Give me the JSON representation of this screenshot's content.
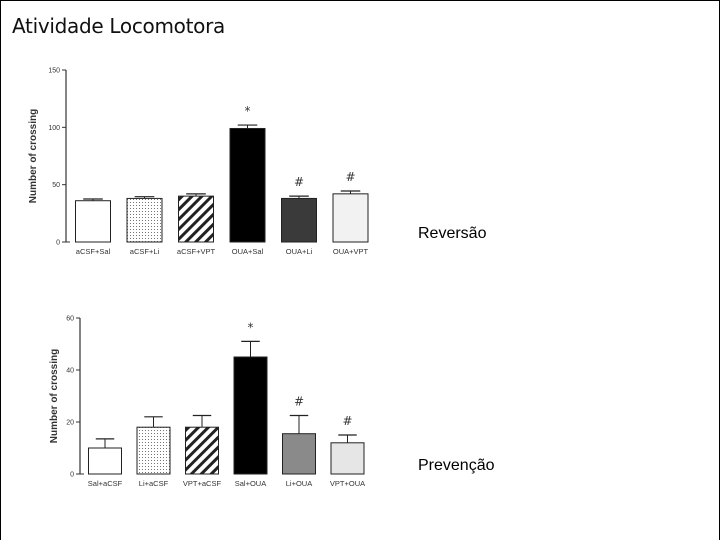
{
  "page": {
    "title": "Atividade Locomotora"
  },
  "chart_data": [
    {
      "type": "bar",
      "panel_label": "Reversão",
      "ylabel": "Number of crossing",
      "ylim": [
        0,
        150
      ],
      "yticks": [
        0,
        50,
        100,
        150
      ],
      "categories": [
        "aCSF+Sal",
        "aCSF+Li",
        "aCSF+VPT",
        "OUA+Sal",
        "OUA+Li",
        "OUA+VPT"
      ],
      "values": [
        36,
        38,
        40,
        99,
        38,
        42
      ],
      "errors": [
        1.5,
        1.5,
        2,
        3,
        2,
        2.5
      ],
      "annotations": [
        "",
        "",
        "",
        "*",
        "#",
        "#"
      ],
      "fills": [
        "#ffffff",
        "dots",
        "hatch",
        "#000000",
        "#3a3a3a",
        "#f2f2f2"
      ]
    },
    {
      "type": "bar",
      "panel_label": "Prevenção",
      "ylabel": "Number of crossing",
      "ylim": [
        0,
        60
      ],
      "yticks": [
        0,
        20,
        40,
        60
      ],
      "categories": [
        "Sal+aCSF",
        "Li+aCSF",
        "VPT+aCSF",
        "Sal+OUA",
        "Li+OUA",
        "VPT+OUA"
      ],
      "values": [
        10,
        18,
        18,
        45,
        15.5,
        12
      ],
      "errors": [
        3.5,
        4,
        4.5,
        6,
        7,
        3
      ],
      "annotations": [
        "",
        "",
        "",
        "*",
        "#",
        "#"
      ],
      "fills": [
        "#ffffff",
        "dots",
        "hatch",
        "#000000",
        "#8a8a8a",
        "#e6e6e6"
      ]
    }
  ]
}
